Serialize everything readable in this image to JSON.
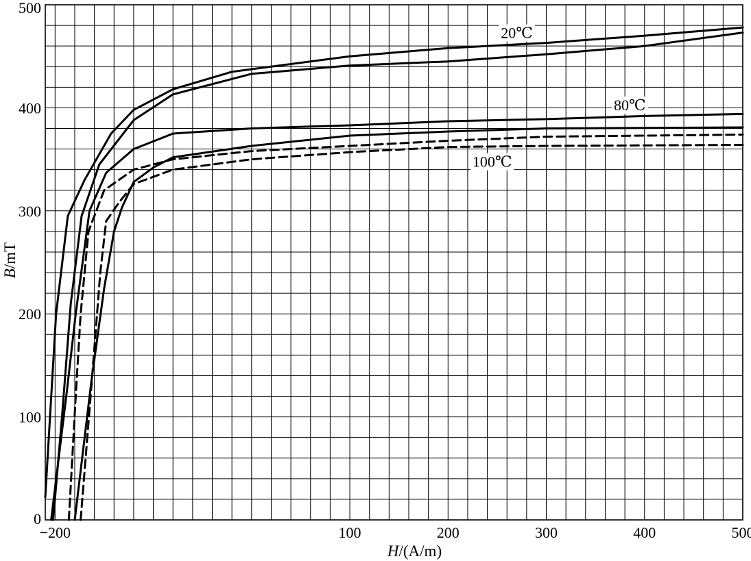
{
  "chart_data": {
    "type": "line",
    "title": "",
    "xlabel": {
      "symbol": "H",
      "unit": "/(A/m)"
    },
    "ylabel": {
      "symbol": "B",
      "unit": "/mT"
    },
    "xlim": [
      -210,
      500
    ],
    "ylim": [
      0,
      500
    ],
    "x_ticks": [
      {
        "value": -200,
        "label": "−200"
      },
      {
        "value": 100,
        "label": "100"
      },
      {
        "value": 200,
        "label": "200"
      },
      {
        "value": 300,
        "label": "300"
      },
      {
        "value": 400,
        "label": "400"
      },
      {
        "value": 500,
        "label": "500"
      }
    ],
    "y_ticks": [
      {
        "value": 0,
        "label": "0"
      },
      {
        "value": 100,
        "label": "100"
      },
      {
        "value": 200,
        "label": "200"
      },
      {
        "value": 300,
        "label": "300"
      },
      {
        "value": 400,
        "label": "400"
      },
      {
        "value": 500,
        "label": "500"
      }
    ],
    "grid": true,
    "series": [
      {
        "name": "20℃",
        "color": "#000000",
        "dashed": false,
        "branches": [
          [
            [
              -210,
              22
            ],
            [
              -199,
              200
            ],
            [
              -187,
              295
            ],
            [
              -170,
              330
            ],
            [
              -143,
              375
            ],
            [
              -120,
              398
            ],
            [
              -80,
              418
            ],
            [
              -20,
              435
            ],
            [
              100,
              450
            ],
            [
              200,
              458
            ],
            [
              300,
              463
            ],
            [
              400,
              470
            ],
            [
              500,
              478
            ]
          ],
          [
            [
              -202,
              0
            ],
            [
              -193,
              100
            ],
            [
              -184,
              210
            ],
            [
              -173,
              295
            ],
            [
              -155,
              345
            ],
            [
              -120,
              388
            ],
            [
              -80,
              413
            ],
            [
              0,
              433
            ],
            [
              100,
              441
            ],
            [
              200,
              445
            ],
            [
              300,
              452
            ],
            [
              400,
              460
            ],
            [
              500,
              473
            ]
          ]
        ],
        "label_at": [
          270,
          473
        ]
      },
      {
        "name": "80℃",
        "color": "#000000",
        "dashed": false,
        "branches": [
          [
            [
              -204,
              0
            ],
            [
              -188,
              125
            ],
            [
              -179,
              200
            ],
            [
              -165,
              300
            ],
            [
              -148,
              337
            ],
            [
              -120,
              360
            ],
            [
              -80,
              375
            ],
            [
              0,
              380
            ],
            [
              100,
              383
            ],
            [
              200,
              387
            ],
            [
              300,
              389
            ],
            [
              400,
              392
            ],
            [
              500,
              394
            ]
          ],
          [
            [
              -180,
              0
            ],
            [
              -163,
              135
            ],
            [
              -150,
              225
            ],
            [
              -140,
              280
            ],
            [
              -132,
              303
            ],
            [
              -120,
              328
            ],
            [
              -100,
              342
            ],
            [
              -80,
              352
            ],
            [
              0,
              363
            ],
            [
              100,
              373
            ],
            [
              200,
              377
            ],
            [
              300,
              380
            ],
            [
              500,
              381
            ]
          ]
        ],
        "label_at": [
          385,
          403
        ]
      },
      {
        "name": "100℃",
        "color": "#000000",
        "dashed": true,
        "branches": [
          [
            [
              -186,
              0
            ],
            [
              -179,
              120
            ],
            [
              -174,
              200
            ],
            [
              -166,
              280
            ],
            [
              -150,
              320
            ],
            [
              -120,
              340
            ],
            [
              -80,
              350
            ],
            [
              0,
              358
            ],
            [
              100,
              363
            ],
            [
              200,
              368
            ],
            [
              300,
              372
            ],
            [
              500,
              374
            ]
          ],
          [
            [
              -174,
              0
            ],
            [
              -163,
              130
            ],
            [
              -154,
              240
            ],
            [
              -148,
              290
            ],
            [
              -135,
              308
            ],
            [
              -120,
              326
            ],
            [
              -80,
              340
            ],
            [
              0,
              350
            ],
            [
              100,
              357
            ],
            [
              200,
              362
            ],
            [
              300,
              363
            ],
            [
              500,
              364
            ]
          ]
        ],
        "label_at": [
          245,
          348
        ]
      }
    ]
  }
}
